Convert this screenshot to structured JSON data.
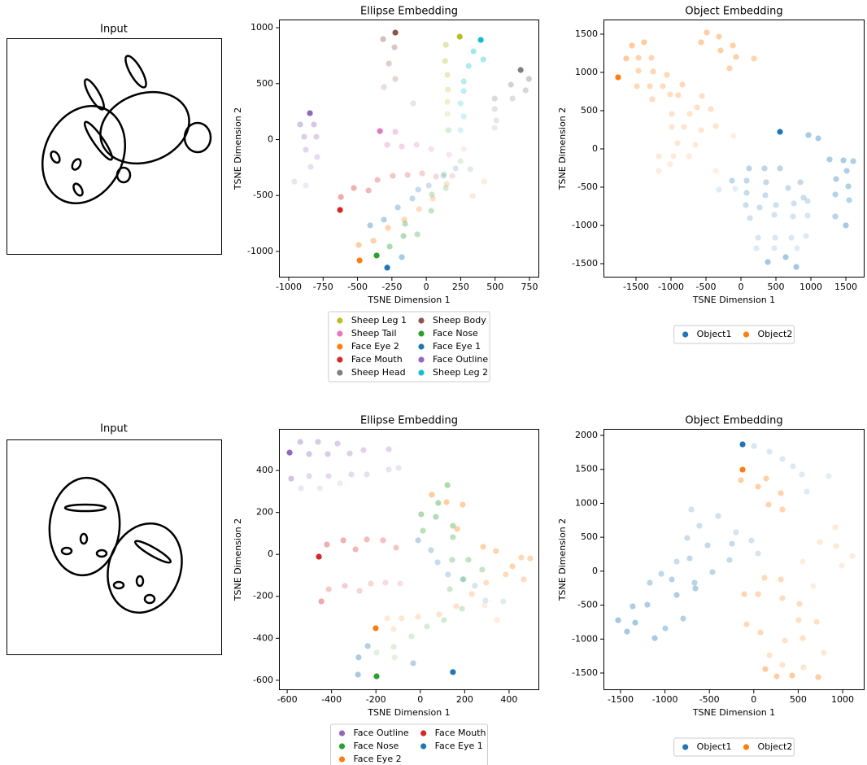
{
  "inputs": [
    {
      "title": "Input"
    },
    {
      "title": "Input"
    }
  ],
  "chart_data": [
    {
      "type": "scatter",
      "title": "Ellipse Embedding",
      "xlabel": "TSNE Dimension 1",
      "ylabel": "TSNE Dimension 2",
      "xlim": [
        -1071,
        821
      ],
      "ylim": [
        -1233,
        1073
      ],
      "xticks": [
        -1000,
        -750,
        -500,
        -250,
        0,
        250,
        500,
        750
      ],
      "yticks": [
        -1000,
        -500,
        0,
        500,
        1000
      ],
      "legend": "below",
      "legend_columns": 2,
      "series": [
        {
          "name": "Sheep Leg 1",
          "color": "#bcbd22",
          "x": [
            243,
            142,
            137,
            154,
            158,
            154,
            154,
            154
          ],
          "y": [
            920,
            847,
            702,
            578,
            447,
            338,
            229,
            84
          ]
        },
        {
          "name": "Sheep Tail",
          "color": "#e377c2",
          "x": [
            -337,
            -225,
            -284,
            -178,
            -71,
            36,
            166,
            272
          ],
          "y": [
            76,
            69,
            -47,
            -62,
            -47,
            -84,
            -135,
            -84
          ]
        },
        {
          "name": "Face Eye 2",
          "color": "#ff7f0e",
          "x": [
            -485,
            -491,
            -385,
            -278,
            -160,
            -53,
            47,
            148,
            337,
            420
          ],
          "y": [
            -1080,
            -942,
            -905,
            -789,
            -716,
            -622,
            -527,
            -396,
            -505,
            -375
          ]
        },
        {
          "name": "Face Mouth",
          "color": "#d62728",
          "x": [
            -627,
            -621,
            -527,
            -420,
            -355,
            -243,
            -136,
            -30,
            71,
            189
          ],
          "y": [
            -629,
            -513,
            -433,
            -455,
            -360,
            -324,
            -316,
            -302,
            -331,
            -324
          ]
        },
        {
          "name": "Sheep Head",
          "color": "#7f7f7f",
          "x": [
            686,
            746,
            615,
            722,
            497,
            627,
            497,
            509,
            497
          ],
          "y": [
            622,
            542,
            491,
            440,
            367,
            367,
            273,
            171,
            105
          ]
        },
        {
          "name": "Sheep Body",
          "color": "#8c564b",
          "x": [
            -225,
            -314,
            -231,
            -272,
            -225,
            -308,
            -95
          ],
          "y": [
            956,
            898,
            825,
            680,
            542,
            469,
            324
          ]
        },
        {
          "name": "Face Nose",
          "color": "#2ca02c",
          "x": [
            -361,
            -266,
            -166,
            -154,
            -65,
            36,
            41,
            142,
            130,
            249
          ],
          "y": [
            -1036,
            -956,
            -862,
            -753,
            -847,
            -636,
            -491,
            -433,
            -309,
            -193
          ]
        },
        {
          "name": "Face Eye 1",
          "color": "#1f77b4",
          "x": [
            -284,
            -178,
            -408,
            -308,
            -207,
            -101,
            -59,
            18,
            124,
            213,
            320
          ],
          "y": [
            -1145,
            -1051,
            -767,
            -716,
            -607,
            -527,
            -447,
            -411,
            -324,
            -258,
            -265
          ]
        },
        {
          "name": "Face Outline",
          "color": "#9467bd",
          "x": [
            -846,
            -917,
            -817,
            -888,
            -799,
            -876,
            -793,
            -840,
            -959,
            -876
          ],
          "y": [
            236,
            135,
            135,
            25,
            25,
            -91,
            -156,
            -244,
            -375,
            -411
          ]
        },
        {
          "name": "Sheep Leg 2",
          "color": "#17becf",
          "x": [
            396,
            343,
            414,
            308,
            272,
            272,
            249,
            272,
            249,
            166
          ],
          "y": [
            891,
            789,
            716,
            658,
            520,
            433,
            324,
            207,
            84,
            84
          ]
        }
      ]
    },
    {
      "type": "scatter",
      "title": "Object Embedding",
      "xlabel": "TSNE Dimension 1",
      "ylabel": "TSNE Dimension 2",
      "xlim": [
        -1965,
        1767
      ],
      "ylim": [
        -1681,
        1691
      ],
      "xticks": [
        -1500,
        -1000,
        -500,
        0,
        500,
        1000,
        1500
      ],
      "yticks": [
        -1500,
        -1000,
        -500,
        0,
        500,
        1000,
        1500
      ],
      "legend": "below",
      "legend_columns": 2,
      "series": [
        {
          "name": "Object1",
          "color": "#1f77b4",
          "x": [
            558,
            384,
            791,
            640,
            1500,
            965,
            1105,
            1267,
            1465,
            1605,
            1512,
            1360,
            1535,
            1349,
            1547,
            1349,
            116,
            337,
            558,
            -128,
            81,
            360,
            849,
            81,
            349,
            674,
            895,
            70,
            267,
            500,
            756,
            953,
            128,
            477,
            744,
            953,
            244,
            488,
            721,
            930,
            221,
            477,
            802,
            -314,
            -81
          ],
          "y": [
            223,
            -1479,
            -1543,
            -1415,
            -1000,
            181,
            138,
            -138,
            -149,
            -160,
            -287,
            -394,
            -489,
            -596,
            -670,
            -883,
            -255,
            -255,
            -255,
            -415,
            -415,
            -436,
            -436,
            -574,
            -606,
            -511,
            -638,
            -734,
            -766,
            -734,
            -713,
            -681,
            -904,
            -862,
            -883,
            -872,
            -1160,
            -1160,
            -1160,
            -1138,
            -1298,
            -1298,
            -1298,
            -532,
            -521
          ]
        },
        {
          "name": "Object2",
          "color": "#ff7f0e",
          "x": [
            -1756,
            -1640,
            -1558,
            -1384,
            -570,
            -488,
            -314,
            -291,
            -116,
            -70,
            -163,
            186,
            -1465,
            -1279,
            -1465,
            -1256,
            -1058,
            -837,
            -1488,
            -1302,
            -1116,
            -895,
            -1267,
            -1012,
            -558,
            -628,
            -430,
            -988,
            -733,
            -360,
            -988,
            -814,
            -570,
            -907,
            -651,
            -1174,
            -965,
            -744,
            -1174,
            -1012,
            -105,
            -360
          ],
          "y": [
            936,
            1181,
            1351,
            1394,
            1394,
            1521,
            1468,
            1287,
            1351,
            1202,
            1053,
            1181,
            1191,
            1191,
            1021,
            1011,
            968,
            840,
            819,
            819,
            819,
            702,
            649,
            713,
            691,
            543,
            521,
            457,
            457,
            298,
            287,
            287,
            245,
            74,
            53,
            -96,
            -96,
            -96,
            -287,
            -202,
            170,
            -287
          ]
        }
      ]
    },
    {
      "type": "scatter",
      "title": "Ellipse Embedding",
      "xlabel": "TSNE Dimension 1",
      "ylabel": "TSNE Dimension 2",
      "xlim": [
        -637,
        536
      ],
      "ylim": [
        -647,
        598
      ],
      "xticks": [
        -600,
        -400,
        -200,
        0,
        200,
        400
      ],
      "yticks": [
        -600,
        -400,
        -200,
        0,
        200,
        400
      ],
      "legend": "below",
      "legend_columns": 2,
      "series": [
        {
          "name": "Face Outline",
          "color": "#9467bd",
          "x": [
            -589,
            -582,
            -541,
            -501,
            -461,
            -417,
            -373,
            -318,
            -256,
            -142,
            -501,
            -413,
            -311,
            -241,
            -142,
            -98,
            -538,
            -453,
            -362
          ],
          "y": [
            485,
            361,
            536,
            478,
            536,
            478,
            528,
            481,
            497,
            501,
            373,
            373,
            381,
            381,
            404,
            412,
            315,
            315,
            338
          ]
        },
        {
          "name": "Face Nose",
          "color": "#2ca02c",
          "x": [
            -197,
            122,
            81,
            4,
            70,
            147,
            12,
            147,
            217,
            144,
            279,
            195,
            133,
            188,
            107,
            30,
            -40,
            -120,
            -197,
            -116
          ],
          "y": [
            -581,
            330,
            245,
            191,
            179,
            136,
            113,
            82,
            -26,
            -26,
            -73,
            -119,
            -166,
            -259,
            -313,
            -344,
            -391,
            -441,
            -468,
            -491
          ]
        },
        {
          "name": "Face Eye 2",
          "color": "#ff7f0e",
          "x": [
            -201,
            52,
            118,
            191,
            166,
            283,
            341,
            415,
            495,
            455,
            385,
            466,
            297,
            232,
            162,
            85,
            -10,
            -84,
            -149,
            -120,
            345,
            290
          ],
          "y": [
            -352,
            284,
            249,
            237,
            121,
            36,
            16,
            -57,
            -19,
            -15,
            -96,
            -119,
            -135,
            -189,
            -247,
            -286,
            -298,
            -305,
            -305,
            -356,
            -313,
            -243
          ]
        },
        {
          "name": "Face Mouth",
          "color": "#d62728",
          "x": [
            -457,
            -446,
            -421,
            -347,
            -292,
            -241,
            -168,
            -109,
            -413,
            -340,
            -274,
            -223,
            -157,
            -91
          ],
          "y": [
            -11,
            -224,
            47,
            67,
            24,
            71,
            67,
            32,
            -166,
            -150,
            -174,
            -139,
            -135,
            -139
          ]
        },
        {
          "name": "Face Eye 1",
          "color": "#1f77b4",
          "x": [
            147,
            -281,
            -278,
            -237,
            -32,
            -10,
            48,
            78,
            125,
            191,
            246,
            294,
            374
          ],
          "y": [
            -561,
            -573,
            -491,
            -437,
            -519,
            67,
            20,
            -38,
            -96,
            -119,
            -150,
            -220,
            -224
          ]
        }
      ]
    },
    {
      "type": "scatter",
      "title": "Object Embedding",
      "xlabel": "TSNE Dimension 1",
      "ylabel": "TSNE Dimension 2",
      "xlim": [
        -1692,
        1247
      ],
      "ylim": [
        -1752,
        2096
      ],
      "xticks": [
        -1500,
        -1000,
        -500,
        0,
        500,
        1000
      ],
      "yticks": [
        -1500,
        -1000,
        -500,
        0,
        500,
        1000,
        1500,
        2000
      ],
      "legend": "below",
      "legend_columns": 2,
      "series": [
        {
          "name": "Object1",
          "color": "#1f77b4",
          "x": [
            -126,
            -1527,
            -1335,
            -1427,
            -1115,
            -1363,
            -1198,
            -868,
            -658,
            -996,
            -795,
            -923,
            -667,
            -465,
            -1170,
            -1042,
            -722,
            -520,
            -273,
            -245,
            -868,
            -749,
            -612,
            -401,
            -703,
            -200,
            -26,
            48,
            2,
            176,
            322,
            441,
            542,
            597,
            844
          ],
          "y": [
            1868,
            -722,
            -758,
            -890,
            -986,
            -518,
            -494,
            -350,
            -254,
            -842,
            -698,
            -122,
            -170,
            -14,
            -170,
            -38,
            189,
            381,
            165,
            405,
            141,
            489,
            669,
            813,
            909,
            573,
            453,
            261,
            1844,
            1760,
            1652,
            1544,
            1424,
            1173,
            1400
          ]
        },
        {
          "name": "Object2",
          "color": "#ff7f0e",
          "x": [
            -126,
            130,
            432,
            725,
            258,
            -145,
            48,
            139,
            304,
            167,
            322,
            -108,
            48,
            -81,
            75,
            121,
            304,
            322,
            515,
            505,
            707,
            551,
            350,
            176,
            322,
            560,
            789,
            744,
            927,
            918,
            1110,
            991,
            551,
            670
          ],
          "y": [
            1496,
            -1441,
            -1537,
            -1561,
            -1549,
            1341,
            1245,
            1365,
            1149,
            981,
            909,
            -338,
            -338,
            -782,
            -902,
            -98,
            -122,
            -398,
            -482,
            -722,
            -746,
            -986,
            -1022,
            -1237,
            -1381,
            -1417,
            -1201,
            429,
            369,
            645,
            225,
            82,
            141,
            -218
          ]
        }
      ]
    }
  ]
}
